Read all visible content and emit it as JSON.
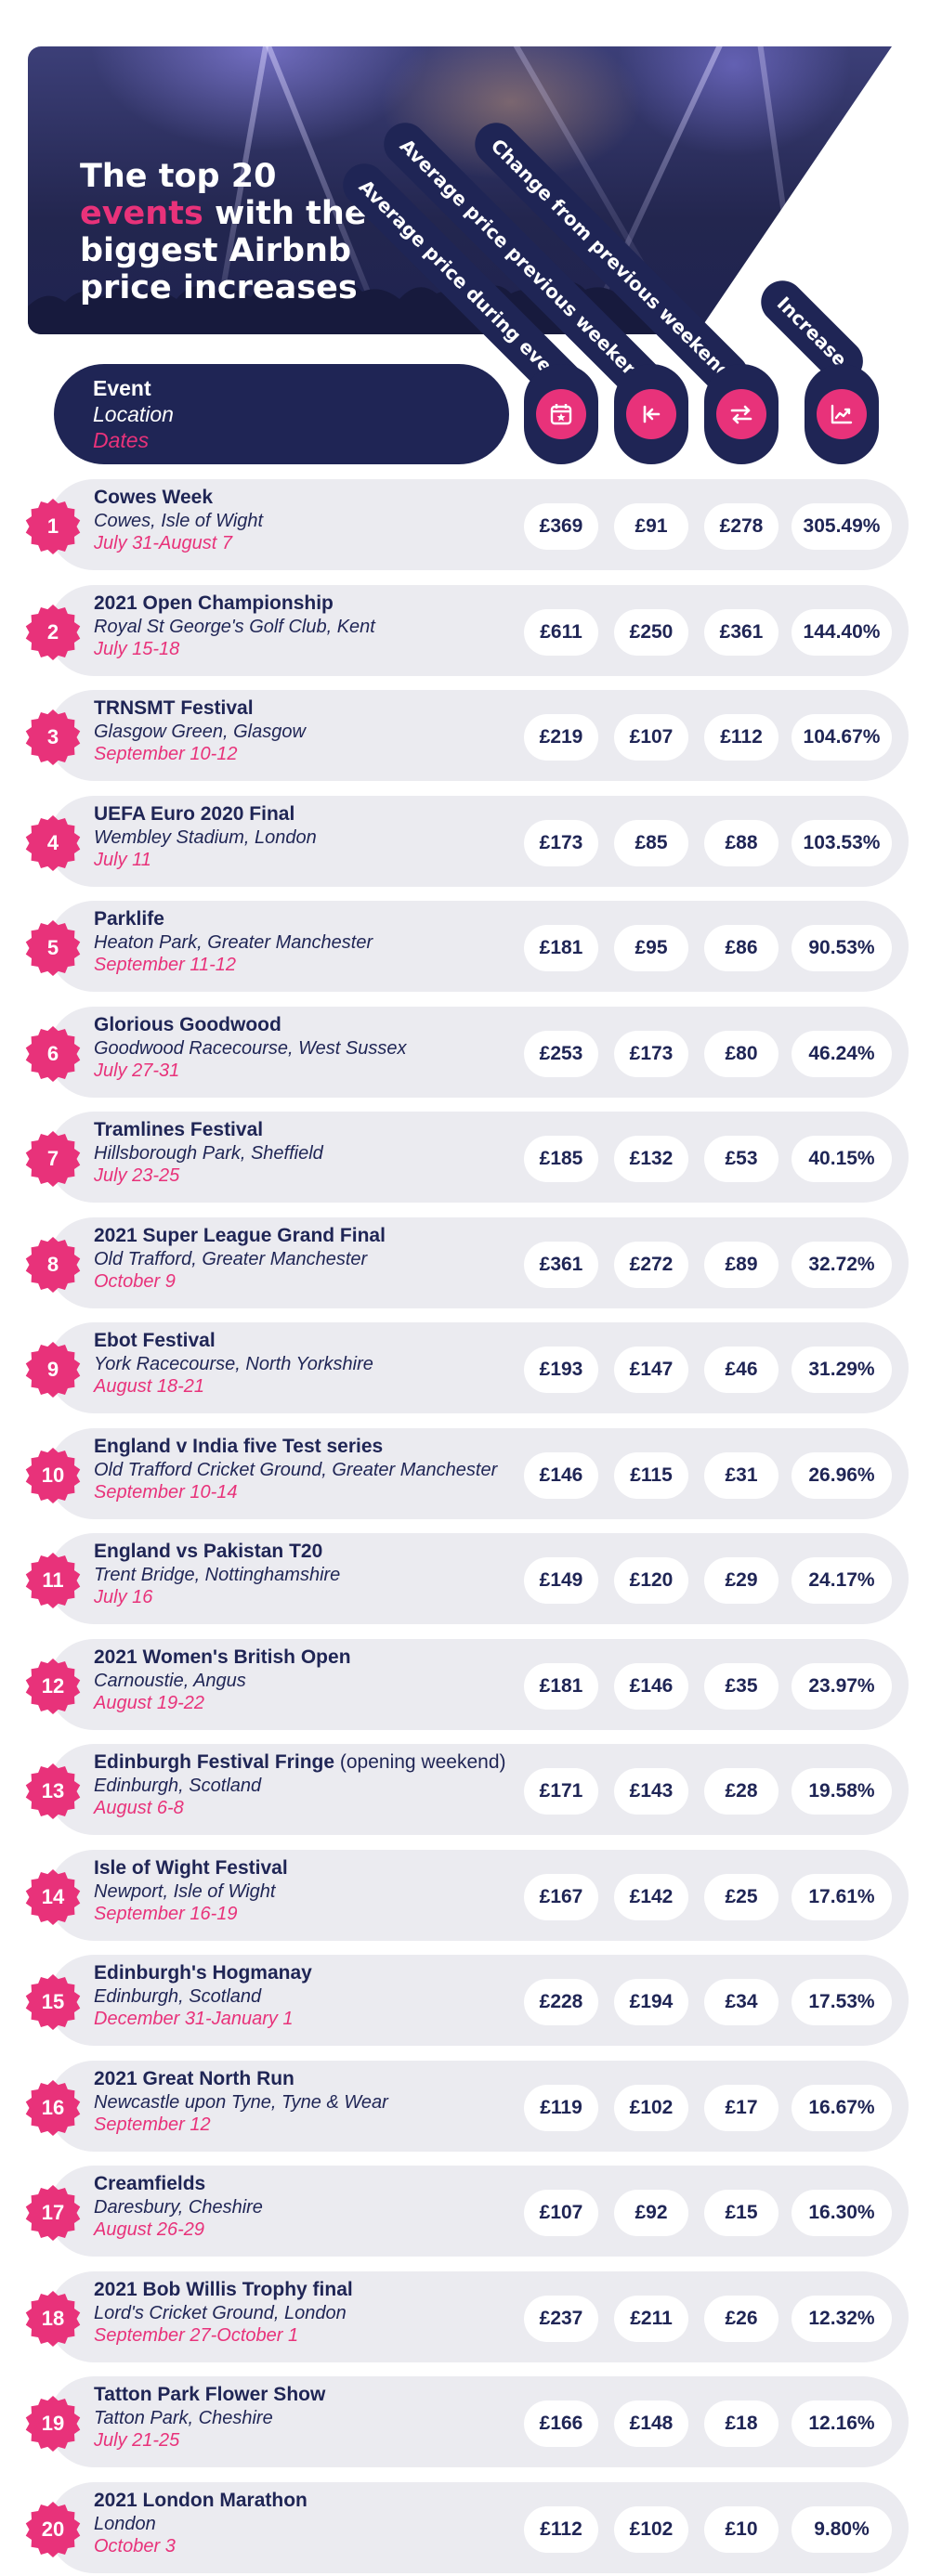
{
  "title": {
    "line1": "The top 20",
    "accent": "events",
    "line2_rest": " with the",
    "line3": "biggest Airbnb",
    "line4": "price increases"
  },
  "columns": [
    {
      "label": "Average price during event",
      "icon": "calendar-star-icon"
    },
    {
      "label": "Average price previous weekend",
      "icon": "arrow-back-icon"
    },
    {
      "label": "Change from previous weekend",
      "icon": "swap-arrows-icon"
    },
    {
      "label": "Increase",
      "icon": "trend-up-chart-icon"
    }
  ],
  "header": {
    "event": "Event",
    "location": "Location",
    "dates": "Dates"
  },
  "colors": {
    "navy": "#1f2555",
    "pink": "#e8327a",
    "row_bg": "#ebebf0"
  },
  "events": [
    {
      "rank": "1",
      "name": "Cowes Week",
      "note": "",
      "location": "Cowes, Isle of Wight",
      "dates": "July 31-August 7",
      "during": "£369",
      "previous": "£91",
      "change": "£278",
      "increase": "305.49%"
    },
    {
      "rank": "2",
      "name": "2021 Open Championship",
      "note": "",
      "location": "Royal St George's Golf Club, Kent",
      "dates": "July 15-18",
      "during": "£611",
      "previous": "£250",
      "change": "£361",
      "increase": "144.40%"
    },
    {
      "rank": "3",
      "name": "TRNSMT Festival",
      "note": "",
      "location": "Glasgow Green, Glasgow",
      "dates": "September 10-12",
      "during": "£219",
      "previous": "£107",
      "change": "£112",
      "increase": "104.67%"
    },
    {
      "rank": "4",
      "name": "UEFA Euro 2020 Final",
      "note": "",
      "location": "Wembley Stadium, London",
      "dates": "July 11",
      "during": "£173",
      "previous": "£85",
      "change": "£88",
      "increase": "103.53%"
    },
    {
      "rank": "5",
      "name": "Parklife",
      "note": "",
      "location": "Heaton Park, Greater Manchester",
      "dates": "September 11-12",
      "during": "£181",
      "previous": "£95",
      "change": "£86",
      "increase": "90.53%"
    },
    {
      "rank": "6",
      "name": "Glorious Goodwood",
      "note": "",
      "location": "Goodwood Racecourse, West Sussex",
      "dates": "July 27-31",
      "during": "£253",
      "previous": "£173",
      "change": "£80",
      "increase": "46.24%"
    },
    {
      "rank": "7",
      "name": "Tramlines Festival",
      "note": "",
      "location": "Hillsborough Park, Sheffield",
      "dates": "July 23-25",
      "during": "£185",
      "previous": "£132",
      "change": "£53",
      "increase": "40.15%"
    },
    {
      "rank": "8",
      "name": "2021 Super League Grand Final",
      "note": "",
      "location": "Old Trafford, Greater Manchester",
      "dates": "October 9",
      "during": "£361",
      "previous": "£272",
      "change": "£89",
      "increase": "32.72%"
    },
    {
      "rank": "9",
      "name": "Ebot Festival",
      "note": "",
      "location": "York Racecourse, North Yorkshire",
      "dates": "August 18-21",
      "during": "£193",
      "previous": "£147",
      "change": "£46",
      "increase": "31.29%"
    },
    {
      "rank": "10",
      "name": "England v India five Test series",
      "note": "",
      "location": "Old Trafford Cricket Ground, Greater Manchester",
      "dates": "September 10-14",
      "during": "£146",
      "previous": "£115",
      "change": "£31",
      "increase": "26.96%"
    },
    {
      "rank": "11",
      "name": "England vs Pakistan T20",
      "note": "",
      "location": "Trent Bridge, Nottinghamshire",
      "dates": "July 16",
      "during": "£149",
      "previous": "£120",
      "change": "£29",
      "increase": "24.17%"
    },
    {
      "rank": "12",
      "name": "2021 Women's British Open",
      "note": "",
      "location": "Carnoustie, Angus",
      "dates": "August 19-22",
      "during": "£181",
      "previous": "£146",
      "change": "£35",
      "increase": "23.97%"
    },
    {
      "rank": "13",
      "name": "Edinburgh Festival Fringe",
      "note": " (opening weekend)",
      "location": "Edinburgh, Scotland",
      "dates": "August 6-8",
      "during": "£171",
      "previous": "£143",
      "change": "£28",
      "increase": "19.58%"
    },
    {
      "rank": "14",
      "name": "Isle of Wight Festival",
      "note": "",
      "location": "Newport, Isle of Wight",
      "dates": "September 16-19",
      "during": "£167",
      "previous": "£142",
      "change": "£25",
      "increase": "17.61%"
    },
    {
      "rank": "15",
      "name": "Edinburgh's Hogmanay",
      "note": "",
      "location": "Edinburgh, Scotland",
      "dates": "December 31-January 1",
      "during": "£228",
      "previous": "£194",
      "change": "£34",
      "increase": "17.53%"
    },
    {
      "rank": "16",
      "name": "2021 Great North Run",
      "note": "",
      "location": "Newcastle upon Tyne, Tyne & Wear",
      "dates": "September 12",
      "during": "£119",
      "previous": "£102",
      "change": "£17",
      "increase": "16.67%"
    },
    {
      "rank": "17",
      "name": "Creamfields",
      "note": "",
      "location": "Daresbury, Cheshire",
      "dates": "August 26-29",
      "during": "£107",
      "previous": "£92",
      "change": "£15",
      "increase": "16.30%"
    },
    {
      "rank": "18",
      "name": "2021 Bob Willis Trophy final",
      "note": "",
      "location": "Lord's Cricket Ground, London",
      "dates": "September 27-October 1",
      "during": "£237",
      "previous": "£211",
      "change": "£26",
      "increase": "12.32%"
    },
    {
      "rank": "19",
      "name": "Tatton Park Flower Show",
      "note": "",
      "location": "Tatton Park, Cheshire",
      "dates": "July 21-25",
      "during": "£166",
      "previous": "£148",
      "change": "£18",
      "increase": "12.16%"
    },
    {
      "rank": "20",
      "name": "2021 London Marathon",
      "note": "",
      "location": "London",
      "dates": "October 3",
      "during": "£112",
      "previous": "£102",
      "change": "£10",
      "increase": "9.80%"
    }
  ]
}
